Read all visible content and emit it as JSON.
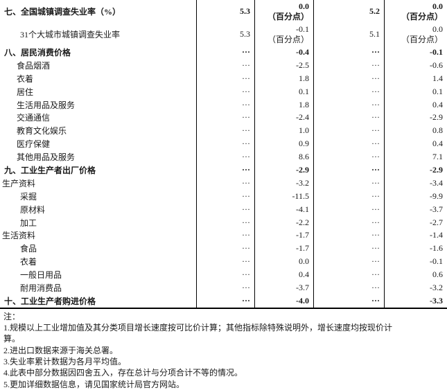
{
  "table": {
    "column_semantics": [
      "indicator",
      "current_value",
      "current_change",
      "cumulative_value",
      "cumulative_change"
    ],
    "change_unit_label": "（百分点）",
    "rows": [
      {
        "label": "七、全国城镇调查失业率（%）",
        "indent": 0,
        "bold": true,
        "v1": "5.3",
        "c1": "0.0",
        "c1_unit": "（百分点）",
        "v2": "5.2",
        "c2": "0.0",
        "c2_unit": "（百分点）"
      },
      {
        "label": "31个大城市城镇调查失业率",
        "indent": 2,
        "bold": false,
        "v1": "5.3",
        "c1": "-0.1",
        "c1_unit": "（百分点）",
        "v2": "5.1",
        "c2": "0.0",
        "c2_unit": "（百分点）"
      },
      {
        "label": "八、居民消费价格",
        "indent": 0,
        "bold": true,
        "v1": "···",
        "c1": "-0.4",
        "v2": "···",
        "c2": "-0.1"
      },
      {
        "label": "食品烟酒",
        "indent": 1,
        "bold": false,
        "v1": "···",
        "c1": "-2.5",
        "v2": "···",
        "c2": "-0.6"
      },
      {
        "label": "衣着",
        "indent": 1,
        "bold": false,
        "v1": "···",
        "c1": "1.8",
        "v2": "···",
        "c2": "1.4"
      },
      {
        "label": "居住",
        "indent": 1,
        "bold": false,
        "v1": "···",
        "c1": "0.1",
        "v2": "···",
        "c2": "0.1"
      },
      {
        "label": "生活用品及服务",
        "indent": 1,
        "bold": false,
        "v1": "···",
        "c1": "1.8",
        "v2": "···",
        "c2": "0.4"
      },
      {
        "label": "交通通信",
        "indent": 1,
        "bold": false,
        "v1": "···",
        "c1": "-2.4",
        "v2": "···",
        "c2": "-2.9"
      },
      {
        "label": "教育文化娱乐",
        "indent": 1,
        "bold": false,
        "v1": "···",
        "c1": "1.0",
        "v2": "···",
        "c2": "0.8"
      },
      {
        "label": "医疗保健",
        "indent": 1,
        "bold": false,
        "v1": "···",
        "c1": "0.9",
        "v2": "···",
        "c2": "0.4"
      },
      {
        "label": "其他用品及服务",
        "indent": 1,
        "bold": false,
        "v1": "···",
        "c1": "8.6",
        "v2": "···",
        "c2": "7.1"
      },
      {
        "label": "九、工业生产者出厂价格",
        "indent": 0,
        "bold": true,
        "v1": "···",
        "c1": "-2.9",
        "v2": "···",
        "c2": "-2.9"
      },
      {
        "label": "生产资料",
        "indent": 3,
        "bold": false,
        "v1": "···",
        "c1": "-3.2",
        "v2": "···",
        "c2": "-3.4"
      },
      {
        "label": "采掘",
        "indent": 2,
        "bold": false,
        "v1": "···",
        "c1": "-11.5",
        "v2": "···",
        "c2": "-9.9"
      },
      {
        "label": "原材料",
        "indent": 2,
        "bold": false,
        "v1": "···",
        "c1": "-4.1",
        "v2": "···",
        "c2": "-3.7"
      },
      {
        "label": "加工",
        "indent": 2,
        "bold": false,
        "v1": "···",
        "c1": "-2.2",
        "v2": "···",
        "c2": "-2.7"
      },
      {
        "label": "生活资料",
        "indent": 3,
        "bold": false,
        "v1": "···",
        "c1": "-1.7",
        "v2": "···",
        "c2": "-1.4"
      },
      {
        "label": "食品",
        "indent": 2,
        "bold": false,
        "v1": "···",
        "c1": "-1.7",
        "v2": "···",
        "c2": "-1.6"
      },
      {
        "label": "衣着",
        "indent": 2,
        "bold": false,
        "v1": "···",
        "c1": "0.0",
        "v2": "···",
        "c2": "-0.1"
      },
      {
        "label": "一般日用品",
        "indent": 2,
        "bold": false,
        "v1": "···",
        "c1": "0.4",
        "v2": "···",
        "c2": "0.6"
      },
      {
        "label": "耐用消费品",
        "indent": 2,
        "bold": false,
        "v1": "···",
        "c1": "-3.7",
        "v2": "···",
        "c2": "-3.2"
      },
      {
        "label": "十、工业生产者购进价格",
        "indent": 0,
        "bold": true,
        "v1": "···",
        "c1": "-4.0",
        "v2": "···",
        "c2": "-3.3"
      }
    ]
  },
  "notes": {
    "label": "注：",
    "lines": [
      "1.规模以上工业增加值及其分类项目增长速度按可比价计算；其他指标除特殊说明外，增长速度均按现价计",
      "算。",
      "2.进出口数据来源于海关总署。",
      "3.失业率累计数据为各月平均值。",
      "4.此表中部分数据因四舍五入，存在总计与分项合计不等的情况。",
      "5.更加详细数据信息，请见国家统计局官方网站。"
    ]
  },
  "colors": {
    "text": "#1a1a1a",
    "border": "#000000",
    "background": "#ffffff"
  }
}
